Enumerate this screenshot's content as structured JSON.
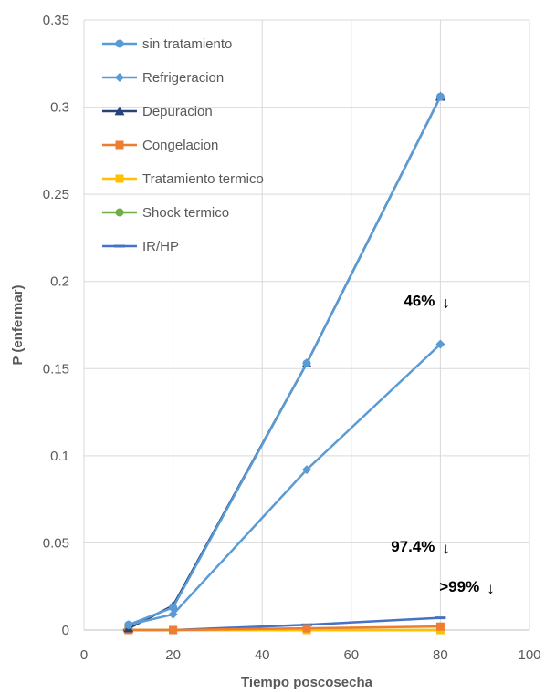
{
  "chart_data": {
    "type": "line",
    "title": "",
    "xlabel": "Tiempo poscosecha",
    "ylabel": "P (enfermar)",
    "xlim": [
      0,
      100
    ],
    "ylim": [
      0,
      0.35
    ],
    "x_ticks": [
      0,
      20,
      40,
      60,
      80,
      100
    ],
    "y_ticks": [
      0,
      0.05,
      0.1,
      0.15,
      0.2,
      0.25,
      0.3,
      0.35
    ],
    "x_tick_labels": [
      "0",
      "20",
      "40",
      "60",
      "80",
      "100"
    ],
    "y_tick_labels": [
      "0",
      "0.05",
      "0.1",
      "0.15",
      "0.2",
      "0.25",
      "0.3",
      "0.35"
    ],
    "grid": true,
    "legend_position": "top-left",
    "series": [
      {
        "name": "sin tratamiento",
        "color": "#5B9BD5",
        "marker": "circle",
        "x": [
          10,
          20,
          50,
          80
        ],
        "y": [
          0.003,
          0.013,
          0.153,
          0.306
        ]
      },
      {
        "name": "Refrigeracion",
        "color": "#5B9BD5",
        "marker": "diamond",
        "x": [
          10,
          20,
          50,
          80
        ],
        "y": [
          0.003,
          0.009,
          0.092,
          0.164
        ]
      },
      {
        "name": "Depuracion",
        "color": "#264478",
        "marker": "triangle",
        "x": [
          10,
          20,
          50,
          80
        ],
        "y": [
          0.001,
          0.014,
          0.153,
          0.306
        ]
      },
      {
        "name": "Congelacion",
        "color": "#ED7D31",
        "marker": "square",
        "x": [
          10,
          20,
          50,
          80
        ],
        "y": [
          0.0,
          0.0,
          0.001,
          0.002
        ]
      },
      {
        "name": "Tratamiento termico",
        "color": "#FFC000",
        "marker": "square",
        "x": [
          10,
          20,
          50,
          80
        ],
        "y": [
          0.0,
          0.0,
          0.0,
          0.0
        ]
      },
      {
        "name": "Shock termico",
        "color": "#70AD47",
        "marker": "circle",
        "x": [
          10,
          20,
          50,
          80
        ],
        "y": [
          0.0,
          0.0,
          0.0,
          0.0
        ]
      },
      {
        "name": "IR/HP",
        "color": "#4472C4",
        "marker": "dash",
        "x": [
          10,
          20,
          50,
          80
        ],
        "y": [
          0.0,
          0.0,
          0.003,
          0.007
        ]
      }
    ],
    "annotations": [
      {
        "text": "46%",
        "arrow": "↓",
        "x": 80,
        "y": 0.186
      },
      {
        "text": "97.4%",
        "arrow": "↓",
        "x": 80,
        "y": 0.045
      },
      {
        "text": ">99%",
        "arrow": "↓",
        "x": 90,
        "y": 0.022
      }
    ]
  }
}
